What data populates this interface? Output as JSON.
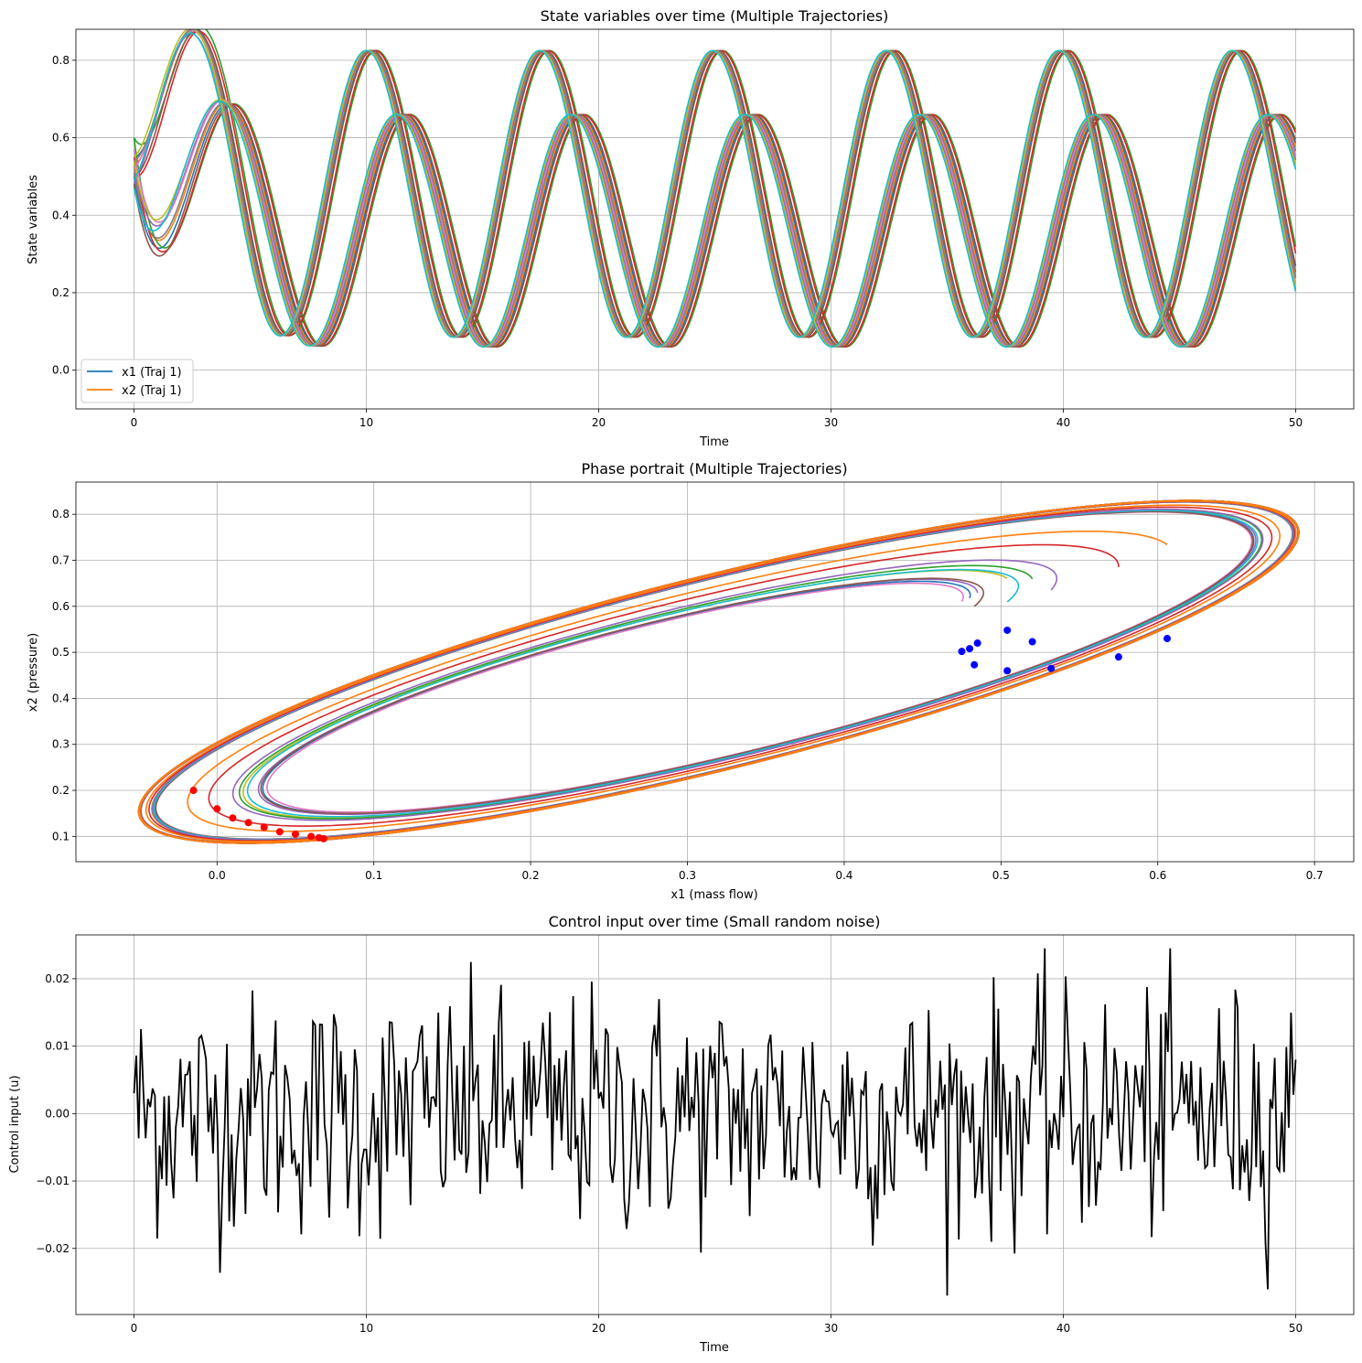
{
  "charts": [
    {
      "type": "line",
      "title": "State variables over time (Multiple Trajectories)",
      "xlabel": "Time",
      "ylabel": "State variables",
      "xlim": [
        -2.5,
        52.5
      ],
      "ylim": [
        -0.1,
        0.88
      ],
      "xticks": [
        0,
        10,
        20,
        30,
        40,
        50
      ],
      "yticks": [
        0.0,
        0.2,
        0.4,
        0.6,
        0.8
      ],
      "grid": true,
      "legend": {
        "placement": "lower-left",
        "entries": [
          {
            "label": "x1 (Traj 1)",
            "color": "#1f77b4"
          },
          {
            "label": "x2 (Traj 1)",
            "color": "#ff7f0e"
          }
        ]
      },
      "model": {
        "x1": {
          "mean": 0.36,
          "amplitude": 0.3,
          "period": 7.5
        },
        "x2": {
          "mean": 0.455,
          "amplitude": 0.37,
          "period": 7.45
        }
      },
      "trajectories": [
        {
          "x1_phase": -1.9,
          "x1_start": 0.5,
          "x2_phase": -0.75,
          "x2_start": 0.55,
          "color": "#1f77b4"
        },
        {
          "x1_phase": -1.85,
          "x1_start": 0.52,
          "x2_phase": -0.72,
          "x2_start": 0.53,
          "color": "#ff7f0e"
        },
        {
          "x1_phase": -2.1,
          "x1_start": 0.6,
          "x2_phase": -0.95,
          "x2_start": 0.6,
          "color": "#2ca02c"
        },
        {
          "x1_phase": -2.05,
          "x1_start": 0.55,
          "x2_phase": -0.9,
          "x2_start": 0.5,
          "color": "#d62728"
        },
        {
          "x1_phase": -1.7,
          "x1_start": 0.53,
          "x2_phase": -0.6,
          "x2_start": 0.48,
          "color": "#9467bd"
        },
        {
          "x1_phase": -1.95,
          "x1_start": 0.48,
          "x2_phase": -0.8,
          "x2_start": 0.5,
          "color": "#8c564b"
        },
        {
          "x1_phase": -1.75,
          "x1_start": 0.57,
          "x2_phase": -0.65,
          "x2_start": 0.52,
          "color": "#e377c2"
        },
        {
          "x1_phase": -1.8,
          "x1_start": 0.51,
          "x2_phase": -0.7,
          "x2_start": 0.54,
          "color": "#7f7f7f"
        },
        {
          "x1_phase": -1.65,
          "x1_start": 0.54,
          "x2_phase": -0.62,
          "x2_start": 0.55,
          "color": "#bcbd22"
        },
        {
          "x1_phase": -1.6,
          "x1_start": 0.47,
          "x2_phase": -0.58,
          "x2_start": 0.49,
          "color": "#17becf"
        }
      ]
    },
    {
      "type": "line",
      "title": "Phase portrait (Multiple Trajectories)",
      "xlabel": "x1 (mass flow)",
      "ylabel": "x2 (pressure)",
      "xlim": [
        -0.09,
        0.725
      ],
      "ylim": [
        0.045,
        0.87
      ],
      "xticks": [
        0.0,
        0.1,
        0.2,
        0.3,
        0.4,
        0.5,
        0.6,
        0.7
      ],
      "yticks": [
        0.1,
        0.2,
        0.3,
        0.4,
        0.5,
        0.6,
        0.7,
        0.8
      ],
      "grid": true,
      "limit_cycle": {
        "x1_min": -0.05,
        "x1_max": 0.69,
        "x2_min": 0.085,
        "x2_max": 0.83
      },
      "start_marker_color": "#0000ff",
      "end_marker_color": "#ff0000",
      "trajectories": [
        {
          "x1_start": 0.504,
          "x2_start": 0.548,
          "end_x1": 0.01,
          "end_x2": 0.14,
          "color": "#bcbd22"
        },
        {
          "x1_start": 0.485,
          "x2_start": 0.52,
          "end_x1": 0.06,
          "end_x2": 0.1,
          "color": "#9467bd"
        },
        {
          "x1_start": 0.48,
          "x2_start": 0.508,
          "end_x1": 0.065,
          "end_x2": 0.097,
          "color": "#1f77b4"
        },
        {
          "x1_start": 0.475,
          "x2_start": 0.502,
          "end_x1": 0.068,
          "end_x2": 0.095,
          "color": "#e377c2"
        },
        {
          "x1_start": 0.52,
          "x2_start": 0.523,
          "end_x1": -0.015,
          "end_x2": 0.2,
          "color": "#2ca02c"
        },
        {
          "x1_start": 0.483,
          "x2_start": 0.473,
          "end_x1": 0.0,
          "end_x2": 0.16,
          "color": "#8c564b"
        },
        {
          "x1_start": 0.504,
          "x2_start": 0.46,
          "end_x1": 0.03,
          "end_x2": 0.12,
          "color": "#17becf"
        },
        {
          "x1_start": 0.532,
          "x2_start": 0.465,
          "end_x1": 0.05,
          "end_x2": 0.105,
          "color": "#9467bd"
        },
        {
          "x1_start": 0.575,
          "x2_start": 0.49,
          "end_x1": 0.04,
          "end_x2": 0.11,
          "color": "#d62728"
        },
        {
          "x1_start": 0.606,
          "x2_start": 0.53,
          "end_x1": 0.02,
          "end_x2": 0.13,
          "color": "#ff7f0e"
        }
      ]
    },
    {
      "type": "line",
      "title": "Control input over time (Small random noise)",
      "xlabel": "Time",
      "ylabel": "Control input (u)",
      "xlim": [
        -2.5,
        52.5
      ],
      "ylim": [
        -0.0298,
        0.0265
      ],
      "xticks": [
        0,
        10,
        20,
        30,
        40,
        50
      ],
      "yticks": [
        -0.02,
        -0.01,
        0.0,
        0.01,
        0.02
      ],
      "ytick_labels": [
        "−0.02",
        "−0.01",
        "0.00",
        "0.01",
        "0.02"
      ],
      "grid": true,
      "series": {
        "color": "#000000",
        "t_start": 0,
        "t_end": 50,
        "samples": 501,
        "std": 0.009,
        "first": 0.003,
        "last": 0.008
      }
    }
  ],
  "tick_labels_top": [
    "0",
    "10",
    "20",
    "30",
    "40",
    "50"
  ],
  "tick_labels_mid_x": [
    "0.0",
    "0.1",
    "0.2",
    "0.3",
    "0.4",
    "0.5",
    "0.6",
    "0.7"
  ],
  "tick_labels_mid_y": [
    "0.1",
    "0.2",
    "0.3",
    "0.4",
    "0.5",
    "0.6",
    "0.7",
    "0.8"
  ],
  "tick_labels_top_y": [
    "0.0",
    "0.2",
    "0.4",
    "0.6",
    "0.8"
  ]
}
